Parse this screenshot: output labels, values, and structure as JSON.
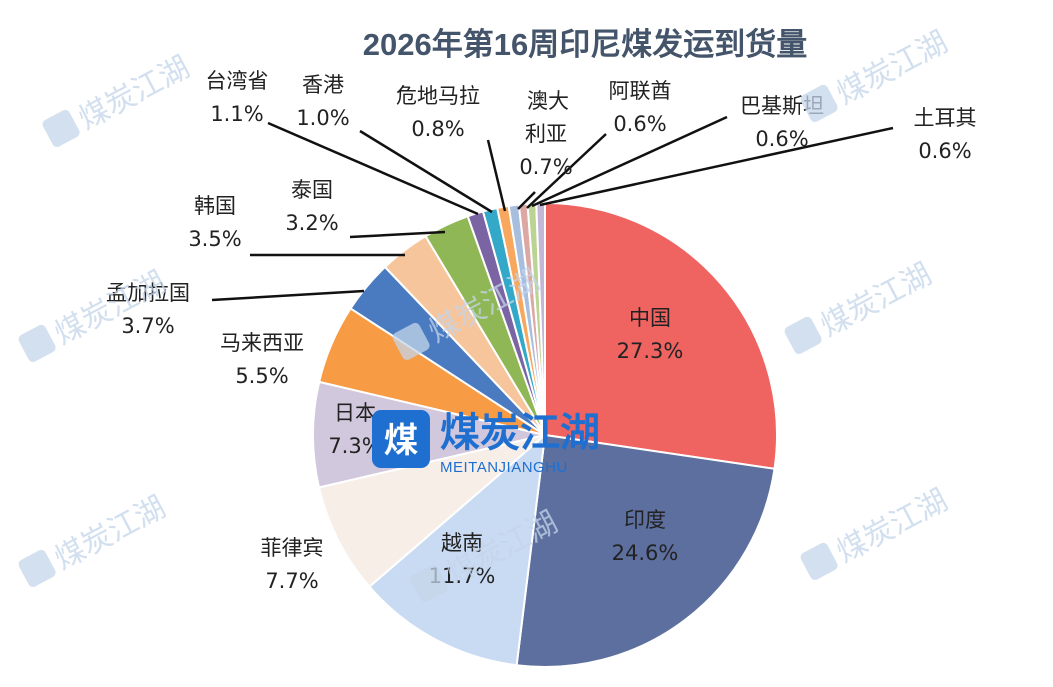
{
  "chart_data": {
    "type": "pie",
    "title": "2026年第16周印尼煤发运到货量",
    "slices": [
      {
        "label": "中国",
        "value": 27.3,
        "display": "27.3%",
        "color": "#EF6361"
      },
      {
        "label": "印度",
        "value": 24.6,
        "display": "24.6%",
        "color": "#5C6F9E"
      },
      {
        "label": "越南",
        "value": 11.7,
        "display": "11.7%",
        "color": "#C9DAF3"
      },
      {
        "label": "菲律宾",
        "value": 7.7,
        "display": "7.7%",
        "color": "#F6EEE7"
      },
      {
        "label": "日本",
        "value": 7.3,
        "display": "7.3%",
        "color": "#D2C8DE"
      },
      {
        "label": "马来西亚",
        "value": 5.5,
        "display": "5.5%",
        "color": "#F79B45"
      },
      {
        "label": "孟加拉国",
        "value": 3.7,
        "display": "3.7%",
        "color": "#4A7BC0"
      },
      {
        "label": "韩国",
        "value": 3.5,
        "display": "3.5%",
        "color": "#F7C59B"
      },
      {
        "label": "泰国",
        "value": 3.2,
        "display": "3.2%",
        "color": "#90B755"
      },
      {
        "label": "台湾省",
        "value": 1.1,
        "display": "1.1%",
        "color": "#7A64A3"
      },
      {
        "label": "香港",
        "value": 1.0,
        "display": "1.0%",
        "color": "#34A8C8"
      },
      {
        "label": "危地马拉",
        "value": 0.8,
        "display": "0.8%",
        "color": "#F7A85E"
      },
      {
        "label": "澳大利亚",
        "value": 0.7,
        "display": "0.7%",
        "color": "#A8BEDF"
      },
      {
        "label": "阿联酋",
        "value": 0.6,
        "display": "0.6%",
        "color": "#DDA7A4"
      },
      {
        "label": "巴基斯坦",
        "value": 0.6,
        "display": "0.6%",
        "color": "#BCD493"
      },
      {
        "label": "土耳其",
        "value": 0.6,
        "display": "0.6%",
        "color": "#C2B8D6"
      }
    ]
  },
  "watermark": {
    "brand_cn": "煤炭江湖",
    "brand_en": "MEITANJIANGHU",
    "logo_char": "煤",
    "brand_color": "#1f6fd0"
  }
}
